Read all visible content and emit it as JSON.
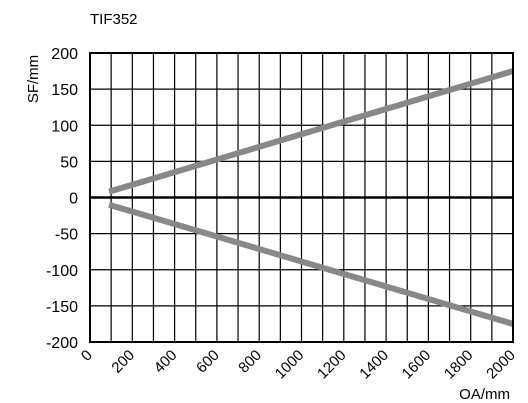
{
  "chart_data": {
    "type": "line",
    "title": "TIF352",
    "xlabel": "OA/mm",
    "ylabel": "SF/mm",
    "xlim": [
      0,
      2000
    ],
    "ylim": [
      -200,
      200
    ],
    "x_ticks": [
      "0",
      "200",
      "400",
      "600",
      "800",
      "1000",
      "1200",
      "1400",
      "1600",
      "1800",
      "2000"
    ],
    "y_ticks": [
      "200",
      "150",
      "100",
      "50",
      "0",
      "-50",
      "-100",
      "-150",
      "-200"
    ],
    "grid": true,
    "series": [
      {
        "x": [
          90,
          2000
        ],
        "y": [
          8,
          175
        ],
        "color": "#888888"
      },
      {
        "x": [
          90,
          2000
        ],
        "y": [
          -10,
          -175
        ],
        "color": "#888888"
      }
    ]
  }
}
